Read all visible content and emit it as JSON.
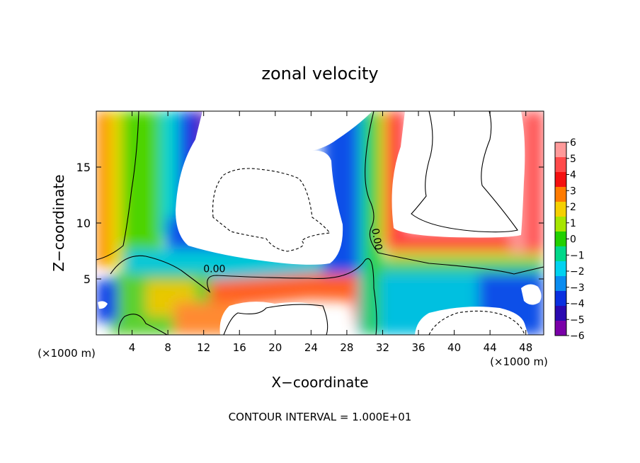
{
  "chart_data": {
    "type": "heatmap",
    "title": "zonal velocity",
    "xlabel": "X−coordinate",
    "ylabel": "Z−coordinate",
    "x_unit_left": "(×1000 m)",
    "x_unit_right": "(×1000 m)",
    "footer": "CONTOUR INTERVAL = 1.000E+01",
    "xlim": [
      0,
      50
    ],
    "ylim": [
      0,
      20
    ],
    "x_ticks": [
      4,
      8,
      12,
      16,
      20,
      24,
      28,
      32,
      36,
      40,
      44,
      48
    ],
    "x_tick_labels": [
      "4",
      "8",
      "12",
      "16",
      "20",
      "24",
      "28",
      "32",
      "36",
      "40",
      "44",
      "48"
    ],
    "y_ticks": [
      5,
      10,
      15
    ],
    "y_tick_labels": [
      "5",
      "10",
      "15"
    ],
    "colorbar": {
      "range": [
        -6,
        6
      ],
      "levels": [
        6,
        5,
        4,
        3,
        2,
        1,
        0,
        -1,
        -2,
        -3,
        -4,
        -5,
        -6
      ],
      "labels": [
        "6",
        "5",
        "4",
        "3",
        "2",
        "1",
        "0",
        "−1",
        "−2",
        "−3",
        "−4",
        "−5",
        "−6"
      ],
      "colors": [
        "#ff9a9a",
        "#ff4a4a",
        "#f41010",
        "#ff7b00",
        "#f5d000",
        "#a6e600",
        "#22d000",
        "#00d88a",
        "#00d2f0",
        "#0a8cf0",
        "#0a30e0",
        "#2a0ab0",
        "#7a00a8"
      ]
    },
    "contour_labels": [
      {
        "text": "0.00",
        "x": 13.2,
        "y": 5.6
      },
      {
        "text": "0.00",
        "x": 31.0,
        "y": 8.5
      }
    ],
    "out_of_range_color": "#ffffff"
  }
}
